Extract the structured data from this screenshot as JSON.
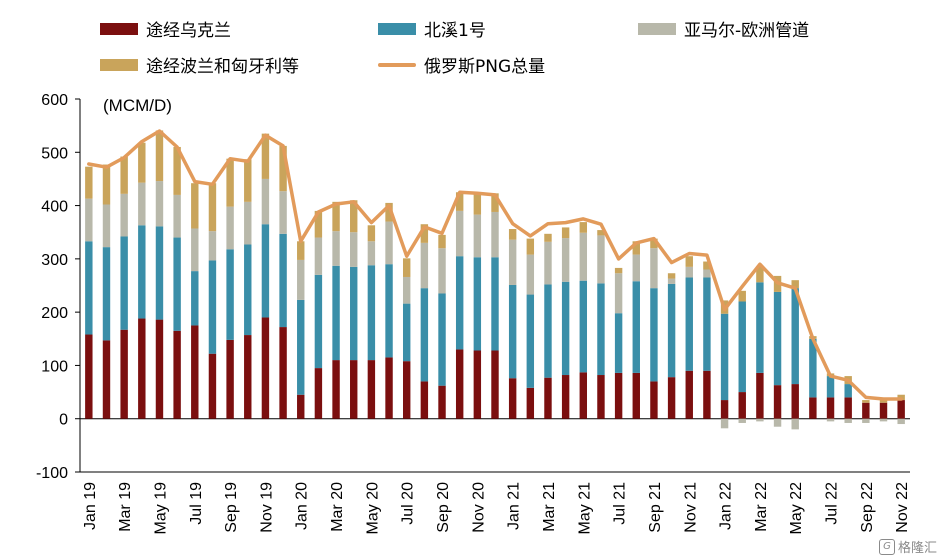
{
  "chart_data": {
    "type": "bar",
    "stacked": true,
    "unit_label": "(MCM/D)",
    "ylim": [
      -100,
      600
    ],
    "yticks": [
      -100,
      0,
      100,
      200,
      300,
      400,
      500,
      600
    ],
    "x_tick_labels": [
      "Jan 19",
      "Mar 19",
      "May 19",
      "Jul 19",
      "Sep 19",
      "Nov 19",
      "Jan 20",
      "Mar 20",
      "May 20",
      "Jul 20",
      "Sep 20",
      "Nov 20",
      "Jan 21",
      "Mar 21",
      "May 21",
      "Jul 21",
      "Sep 21",
      "Nov 21",
      "Jan 22",
      "Mar 22",
      "May 22",
      "Jul 22",
      "Sep 22",
      "Nov 22"
    ],
    "categories": [
      "Jan 19",
      "Feb 19",
      "Mar 19",
      "Apr 19",
      "May 19",
      "Jun 19",
      "Jul 19",
      "Aug 19",
      "Sep 19",
      "Oct 19",
      "Nov 19",
      "Dec 19",
      "Jan 20",
      "Feb 20",
      "Mar 20",
      "Apr 20",
      "May 20",
      "Jun 20",
      "Jul 20",
      "Aug 20",
      "Sep 20",
      "Oct 20",
      "Nov 20",
      "Dec 20",
      "Jan 21",
      "Feb 21",
      "Mar 21",
      "Apr 21",
      "May 21",
      "Jun 21",
      "Jul 21",
      "Aug 21",
      "Sep 21",
      "Oct 21",
      "Nov 21",
      "Dec 21",
      "Jan 22",
      "Feb 22",
      "Mar 22",
      "Apr 22",
      "May 22",
      "Jun 22",
      "Jul 22",
      "Aug 22",
      "Sep 22",
      "Oct 22",
      "Nov 22"
    ],
    "series": [
      {
        "name": "途经乌克兰",
        "color": "#7b0f0f",
        "kind": "bar",
        "values": [
          158,
          147,
          167,
          188,
          186,
          165,
          175,
          122,
          148,
          157,
          190,
          172,
          45,
          95,
          110,
          110,
          110,
          115,
          108,
          70,
          62,
          130,
          128,
          128,
          76,
          58,
          77,
          82,
          87,
          82,
          86,
          86,
          70,
          78,
          90,
          90,
          35,
          50,
          86,
          63,
          65,
          40,
          40,
          40,
          30,
          30,
          35
        ]
      },
      {
        "name": "北溪1号",
        "color": "#3a8ea8",
        "kind": "bar",
        "values": [
          175,
          175,
          175,
          175,
          175,
          175,
          102,
          175,
          170,
          170,
          175,
          175,
          178,
          175,
          177,
          175,
          178,
          175,
          108,
          175,
          173,
          175,
          175,
          175,
          175,
          175,
          175,
          175,
          172,
          172,
          112,
          172,
          175,
          175,
          175,
          175,
          162,
          170,
          170,
          175,
          180,
          110,
          40,
          25,
          0,
          0,
          0
        ]
      },
      {
        "name": "亚马尔-欧洲管道",
        "color": "#b8b8aa",
        "kind": "bar",
        "values": [
          80,
          80,
          80,
          80,
          85,
          80,
          80,
          55,
          80,
          80,
          85,
          80,
          75,
          70,
          65,
          65,
          45,
          80,
          50,
          85,
          85,
          85,
          80,
          85,
          85,
          75,
          80,
          82,
          90,
          90,
          75,
          50,
          75,
          10,
          20,
          15,
          -18,
          -8,
          -5,
          -15,
          -20,
          0,
          -5,
          -8,
          -8,
          -5,
          -10
        ]
      },
      {
        "name": "途经波兰和匈牙利等",
        "color": "#c9a45b",
        "kind": "bar",
        "values": [
          60,
          75,
          70,
          75,
          95,
          90,
          85,
          90,
          90,
          80,
          85,
          85,
          35,
          50,
          55,
          60,
          30,
          35,
          35,
          35,
          25,
          35,
          40,
          35,
          20,
          30,
          15,
          20,
          20,
          10,
          10,
          25,
          18,
          10,
          20,
          15,
          25,
          20,
          30,
          30,
          15,
          5,
          5,
          15,
          5,
          5,
          10
        ]
      },
      {
        "name": "俄罗斯PNG总量",
        "color": "#e29b5b",
        "kind": "line",
        "values": [
          478,
          472,
          490,
          520,
          540,
          510,
          445,
          440,
          488,
          483,
          532,
          512,
          333,
          388,
          403,
          407,
          368,
          400,
          305,
          360,
          348,
          425,
          423,
          420,
          366,
          343,
          366,
          368,
          375,
          365,
          300,
          330,
          338,
          293,
          310,
          307,
          205,
          248,
          290,
          255,
          245,
          150,
          80,
          72,
          40,
          37,
          37
        ]
      }
    ],
    "legend": [
      "途经乌克兰",
      "北溪1号",
      "亚马尔-欧洲管道",
      "途经波兰和匈牙利等",
      "俄罗斯PNG总量"
    ],
    "grid": false,
    "legend_position": "top"
  },
  "watermark": "格隆汇"
}
